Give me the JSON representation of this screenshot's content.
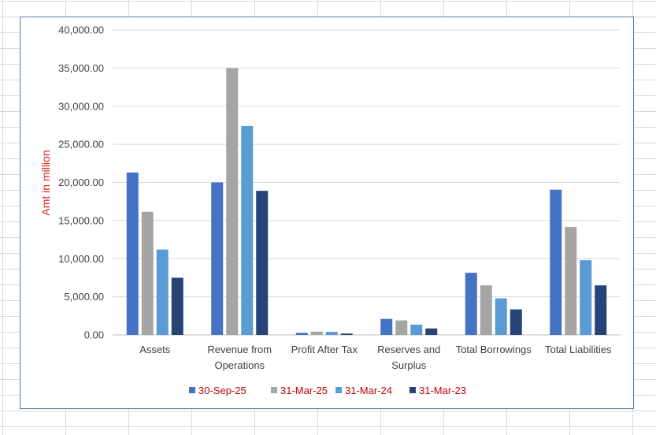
{
  "chart_data": {
    "type": "bar",
    "title": "",
    "xlabel": "",
    "ylabel": "Amt in million",
    "ylim": [
      0,
      40000
    ],
    "ytick_step": 5000,
    "ytick_labels": [
      "0.00",
      "5,000.00",
      "10,000.00",
      "15,000.00",
      "20,000.00",
      "25,000.00",
      "30,000.00",
      "35,000.00",
      "40,000.00"
    ],
    "grid": true,
    "legend_position": "bottom",
    "categories": [
      "Assets",
      "Revenue from Operations",
      "Profit After Tax",
      "Reserves and Surplus",
      "Total Borrowings",
      "Total Liabilities"
    ],
    "category_lines": [
      [
        "Assets"
      ],
      [
        "Revenue from",
        "Operations"
      ],
      [
        "Profit After Tax"
      ],
      [
        "Reserves and",
        "Surplus"
      ],
      [
        "Total Borrowings"
      ],
      [
        "Total Liabilities"
      ]
    ],
    "series": [
      {
        "name": "30-Sep-25",
        "color": "#4472c4",
        "values": [
          21300,
          20000,
          270,
          2100,
          8150,
          19050
        ]
      },
      {
        "name": "31-Mar-25",
        "color": "#a5a5a5",
        "values": [
          16150,
          35000,
          430,
          1900,
          6500,
          14150
        ]
      },
      {
        "name": "31-Mar-24",
        "color": "#5b9bd5",
        "values": [
          11200,
          27400,
          400,
          1350,
          4800,
          9800
        ]
      },
      {
        "name": "31-Mar-23",
        "color": "#264478",
        "values": [
          7500,
          18900,
          180,
          850,
          3350,
          6500
        ]
      }
    ]
  }
}
